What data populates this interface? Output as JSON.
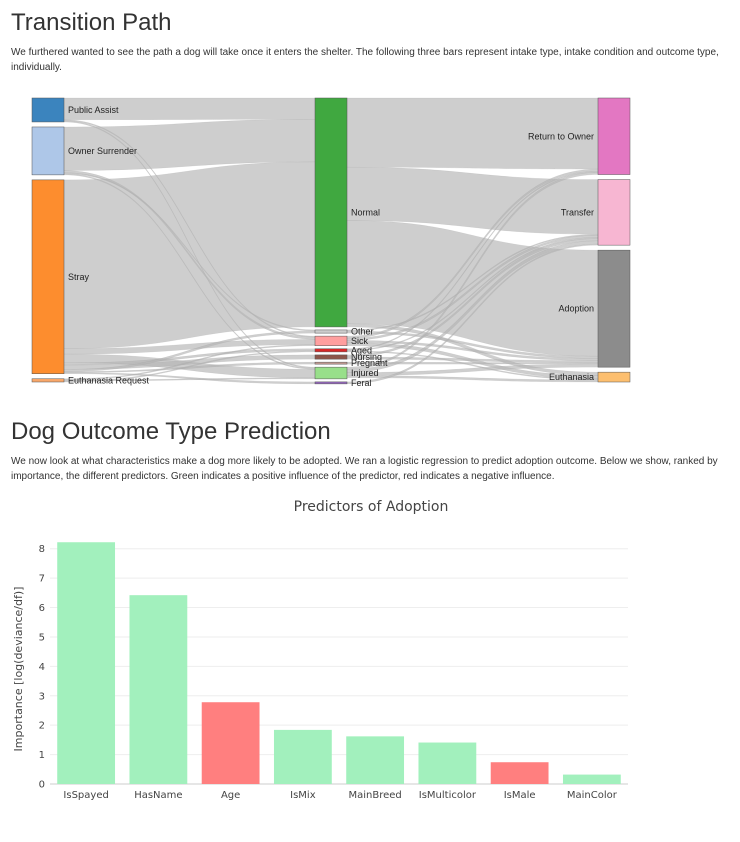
{
  "section1": {
    "title": "Transition Path",
    "paragraph": "We furthered wanted to see the path a dog will take once it enters the shelter. The following three bars represent intake type, intake condition and outcome type, individually."
  },
  "section2": {
    "title": "Dog Outcome Type Prediction",
    "paragraph": "We now look at what characteristics make a dog more likely to be adopted. We ran a logistic regression to predict adoption outcome. Below we show, ranked by importance, the different predictors. Green indicates a positive influence of the predictor, red indicates a negative influence."
  },
  "chart_data": [
    {
      "type": "sankey",
      "stages": [
        "intake type",
        "intake condition",
        "outcome type"
      ],
      "nodes": [
        {
          "name": "Public Assist",
          "stage": 0,
          "color": "#3b84be"
        },
        {
          "name": "Owner Surrender",
          "stage": 0,
          "color": "#aec7e8"
        },
        {
          "name": "Stray",
          "stage": 0,
          "color": "#fd8d2e"
        },
        {
          "name": "Euthanasia Request",
          "stage": 0,
          "color": "#f8a76a"
        },
        {
          "name": "Normal",
          "stage": 1,
          "color": "#40a840"
        },
        {
          "name": "Other",
          "stage": 1,
          "color": "#cccccc"
        },
        {
          "name": "Sick",
          "stage": 1,
          "color": "#ff9f9f"
        },
        {
          "name": "Aged",
          "stage": 1,
          "color": "#d62728"
        },
        {
          "name": "Nursing",
          "stage": 1,
          "color": "#8c564b"
        },
        {
          "name": "Pregnant",
          "stage": 1,
          "color": "#c49c94"
        },
        {
          "name": "Injured",
          "stage": 1,
          "color": "#98df8a"
        },
        {
          "name": "Feral",
          "stage": 1,
          "color": "#9467bd"
        },
        {
          "name": "Return to Owner",
          "stage": 2,
          "color": "#e377c2"
        },
        {
          "name": "Transfer",
          "stage": 2,
          "color": "#f7b6d2"
        },
        {
          "name": "Adoption",
          "stage": 2,
          "color": "#8c8c8c"
        },
        {
          "name": "Euthanasia",
          "stage": 2,
          "color": "#fdbf6f"
        }
      ],
      "links": [
        {
          "source": "Public Assist",
          "target": "Normal",
          "value": 20
        },
        {
          "source": "Public Assist",
          "target": "Sick",
          "value": 1
        },
        {
          "source": "Public Assist",
          "target": "Injured",
          "value": 1
        },
        {
          "source": "Owner Surrender",
          "target": "Normal",
          "value": 40
        },
        {
          "source": "Owner Surrender",
          "target": "Sick",
          "value": 2
        },
        {
          "source": "Owner Surrender",
          "target": "Other",
          "value": 1
        },
        {
          "source": "Owner Surrender",
          "target": "Injured",
          "value": 1
        },
        {
          "source": "Stray",
          "target": "Normal",
          "value": 155
        },
        {
          "source": "Stray",
          "target": "Sick",
          "value": 5
        },
        {
          "source": "Stray",
          "target": "Injured",
          "value": 8
        },
        {
          "source": "Stray",
          "target": "Aged",
          "value": 2
        },
        {
          "source": "Stray",
          "target": "Nursing",
          "value": 4
        },
        {
          "source": "Stray",
          "target": "Other",
          "value": 2
        },
        {
          "source": "Stray",
          "target": "Pregnant",
          "value": 1
        },
        {
          "source": "Stray",
          "target": "Feral",
          "value": 1
        },
        {
          "source": "Euthanasia Request",
          "target": "Sick",
          "value": 1
        },
        {
          "source": "Euthanasia Request",
          "target": "Injured",
          "value": 1
        },
        {
          "source": "Euthanasia Request",
          "target": "Aged",
          "value": 1
        },
        {
          "source": "Normal",
          "target": "Return to Owner",
          "value": 65
        },
        {
          "source": "Normal",
          "target": "Transfer",
          "value": 50
        },
        {
          "source": "Normal",
          "target": "Adoption",
          "value": 97
        },
        {
          "source": "Normal",
          "target": "Euthanasia",
          "value": 3
        },
        {
          "source": "Other",
          "target": "Transfer",
          "value": 1
        },
        {
          "source": "Other",
          "target": "Adoption",
          "value": 2
        },
        {
          "source": "Sick",
          "target": "Return to Owner",
          "value": 2
        },
        {
          "source": "Sick",
          "target": "Transfer",
          "value": 2
        },
        {
          "source": "Sick",
          "target": "Adoption",
          "value": 2
        },
        {
          "source": "Sick",
          "target": "Euthanasia",
          "value": 3
        },
        {
          "source": "Aged",
          "target": "Return to Owner",
          "value": 1
        },
        {
          "source": "Aged",
          "target": "Transfer",
          "value": 1
        },
        {
          "source": "Aged",
          "target": "Euthanasia",
          "value": 1
        },
        {
          "source": "Nursing",
          "target": "Transfer",
          "value": 2
        },
        {
          "source": "Nursing",
          "target": "Adoption",
          "value": 2
        },
        {
          "source": "Pregnant",
          "target": "Adoption",
          "value": 1
        },
        {
          "source": "Injured",
          "target": "Return to Owner",
          "value": 2
        },
        {
          "source": "Injured",
          "target": "Transfer",
          "value": 3
        },
        {
          "source": "Injured",
          "target": "Adoption",
          "value": 3
        },
        {
          "source": "Injured",
          "target": "Euthanasia",
          "value": 2
        },
        {
          "source": "Feral",
          "target": "Transfer",
          "value": 1
        }
      ]
    },
    {
      "type": "bar",
      "title": "Predictors of Adoption",
      "xlabel": "",
      "ylabel": "Importance [log(deviance/df)]",
      "categories": [
        "IsSpayed",
        "HasName",
        "Age",
        "IsMix",
        "MainBreed",
        "IsMulticolor",
        "IsMale",
        "MainColor"
      ],
      "values": [
        8.22,
        6.42,
        2.78,
        1.84,
        1.62,
        1.41,
        0.74,
        0.32
      ],
      "influence": [
        "positive",
        "positive",
        "negative",
        "positive",
        "positive",
        "positive",
        "negative",
        "positive"
      ],
      "colors": {
        "positive": "#a2f0bd",
        "negative": "#ff7f7f"
      },
      "ylim": [
        0,
        8.5
      ],
      "yticks": [
        0,
        1,
        2,
        3,
        4,
        5,
        6,
        7,
        8
      ],
      "grid": true
    }
  ]
}
